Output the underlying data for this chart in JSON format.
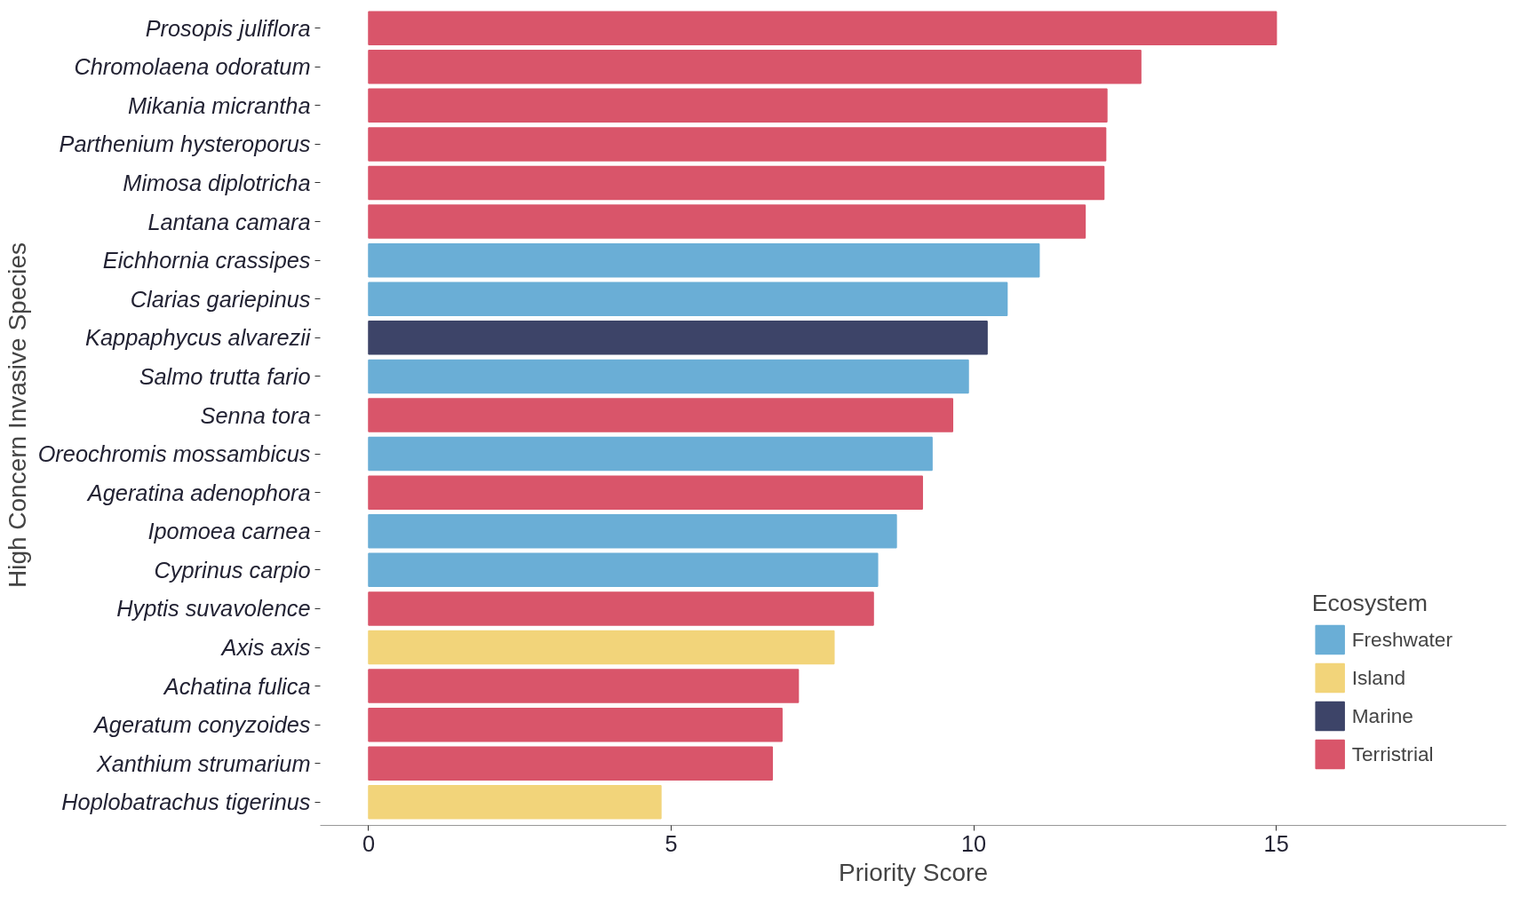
{
  "chart_data": {
    "type": "bar",
    "orientation": "horizontal",
    "xlabel": "Priority Score",
    "ylabel": "High Concern Invasive Species",
    "legend_title": "Ecosystem",
    "legend": "bottom right",
    "grid": false,
    "categories": [
      "Prosopis juliflora",
      "Chromolaena odoratum",
      "Mikania micrantha",
      "Parthenium hysteroporus",
      "Mimosa diplotricha",
      "Lantana camara",
      "Eichhornia crassipes",
      "Clarias gariepinus",
      "Kappaphycus alvarezii",
      "Salmo trutta fario",
      "Senna tora",
      "Oreochromis mossambicus",
      "Ageratina adenophora",
      "Ipomoea carnea",
      "Cyprinus carpio",
      "Hyptis suvavolence",
      "Axis axis",
      "Achatina fulica",
      "Ageratum conyzoides",
      "Xanthium strumarium",
      "Hoplobatrachus tigerinus"
    ],
    "xlim": [
      -0.8,
      18.8
    ],
    "xticks": [
      0,
      5,
      10,
      15
    ],
    "series": [
      {
        "name": "Freshwater",
        "color": "#6aaed6",
        "values": [
          null,
          null,
          null,
          null,
          null,
          null,
          11.08,
          10.55,
          null,
          9.91,
          null,
          9.31,
          null,
          8.72,
          8.41,
          null,
          null,
          null,
          null,
          null,
          null
        ]
      },
      {
        "name": "Island",
        "color": "#f2d47a",
        "values": [
          null,
          null,
          null,
          null,
          null,
          null,
          null,
          null,
          null,
          null,
          null,
          null,
          null,
          null,
          null,
          null,
          7.69,
          null,
          null,
          null,
          4.83
        ]
      },
      {
        "name": "Marine",
        "color": "#3d4468",
        "values": [
          null,
          null,
          null,
          null,
          null,
          null,
          null,
          null,
          10.22,
          null,
          null,
          null,
          null,
          null,
          null,
          null,
          null,
          null,
          null,
          null,
          null
        ]
      },
      {
        "name": "Terristrial",
        "color": "#d9556a",
        "values": [
          15.0,
          12.76,
          12.2,
          12.18,
          12.15,
          11.84,
          null,
          null,
          null,
          null,
          9.65,
          null,
          9.15,
          null,
          null,
          8.34,
          null,
          7.1,
          6.83,
          6.67,
          null
        ]
      }
    ]
  }
}
